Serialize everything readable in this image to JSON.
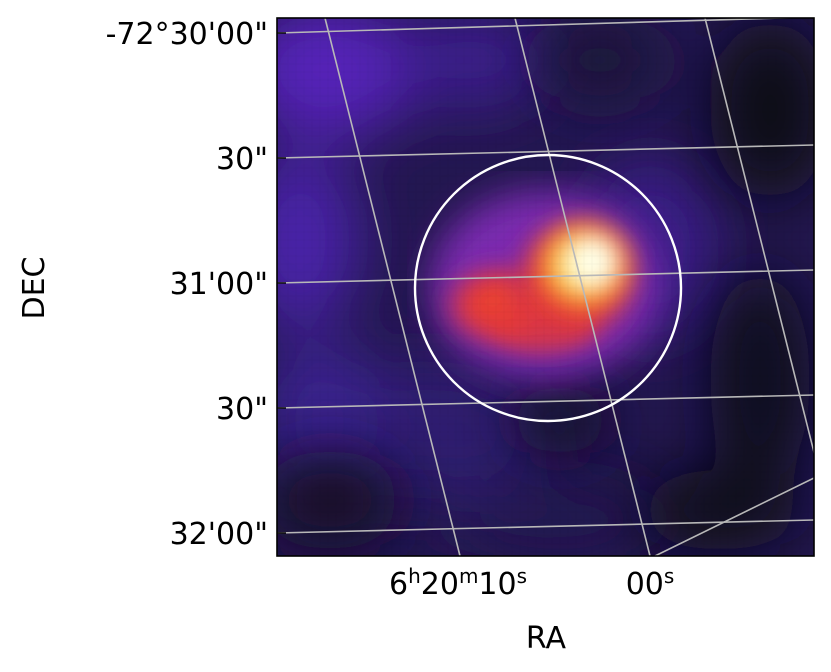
{
  "figure": {
    "xlabel": "RA",
    "ylabel": "DEC",
    "y_ticks": [
      "-72°30'00\"",
      "30\"",
      "31'00\"",
      "30\"",
      "32'00\""
    ],
    "x_ticks": [
      {
        "h": "6",
        "h_unit": "h",
        "m": "20",
        "m_unit": "m",
        "s": "10",
        "s_unit": "s"
      },
      {
        "s": "00",
        "s_unit": "s"
      }
    ],
    "colors": {
      "background_image": "#1c1440",
      "grid": "#b8b8b8",
      "aperture_circle": "#ffffff",
      "frame": "#000000"
    },
    "colormap": "CMRmap-like (black–purple–red–yellow–white)",
    "aperture": {
      "shape": "circle",
      "stroke": "white"
    },
    "coordinate_grid": "on"
  }
}
